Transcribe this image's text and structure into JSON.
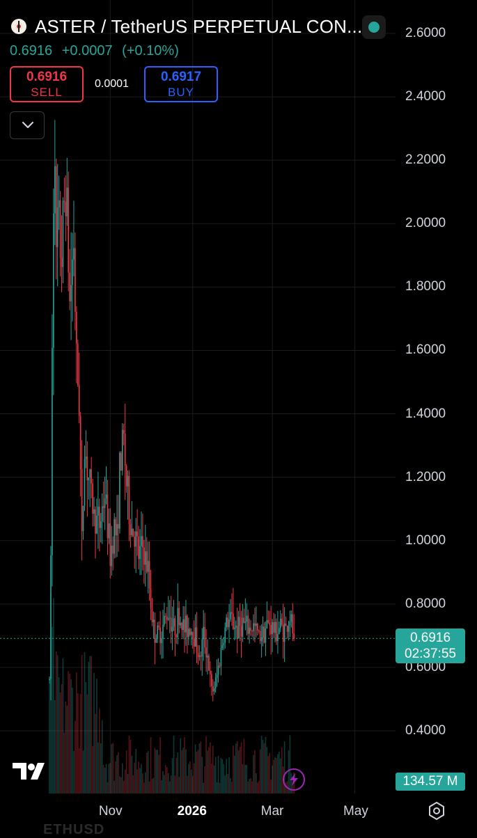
{
  "header": {
    "title": "ASTER / TetherUS PERPETUAL CON...",
    "last_price": "0.6916",
    "change_abs": "+0.0007",
    "change_pct": "(+0.10%)"
  },
  "trade": {
    "sell_price": "0.6916",
    "sell_label": "SELL",
    "buy_price": "0.6917",
    "buy_label": "BUY",
    "spread": "0.0001"
  },
  "price_scale": {
    "current_price": "0.6916",
    "countdown": "02:37:55",
    "volume_label": "134.57 M"
  },
  "icons": {
    "status": "status-dot-icon",
    "collapse": "chevron-down-icon",
    "logo": "tradingview-logo-icon",
    "bolt": "lightning-icon",
    "settings": "gear-icon"
  },
  "colors": {
    "up": "#26a69a",
    "down": "#f23645",
    "buy": "#2962ff",
    "background": "#000000",
    "grid": "#1c1c1c",
    "bolt": "#9c27b0"
  },
  "watermark": "ETHUSD",
  "chart_data": {
    "type": "candlestick",
    "title": "ASTER / TetherUS PERPETUAL CON...",
    "xlabel": "",
    "ylabel": "",
    "ylim": [
      0.3,
      2.65
    ],
    "grid": true,
    "y_ticks": [
      "2.6000",
      "2.4000",
      "2.2000",
      "2.0000",
      "1.8000",
      "1.6000",
      "1.4000",
      "1.2000",
      "1.0000",
      "0.8000",
      "0.6000",
      "0.4000"
    ],
    "x_ticks": [
      "Nov",
      "2026",
      "Mar",
      "May"
    ],
    "date_range": [
      "2025-09-17",
      "2026-03-17"
    ],
    "current_price": 0.6916,
    "ohlc_path": [
      [
        "2025-09-17",
        0.55
      ],
      [
        "2025-09-18",
        0.95
      ],
      [
        "2025-09-19",
        1.6
      ],
      [
        "2025-09-20",
        2.1
      ],
      [
        "2025-09-21",
        2.3
      ],
      [
        "2025-09-22",
        1.85
      ],
      [
        "2025-09-23",
        2.0
      ],
      [
        "2025-09-26",
        1.9
      ],
      [
        "2025-09-29",
        2.15
      ],
      [
        "2025-10-02",
        1.75
      ],
      [
        "2025-10-05",
        1.95
      ],
      [
        "2025-10-07",
        1.55
      ],
      [
        "2025-10-09",
        1.45
      ],
      [
        "2025-10-11",
        0.98
      ],
      [
        "2025-10-13",
        1.3
      ],
      [
        "2025-10-16",
        1.2
      ],
      [
        "2025-10-20",
        1.08
      ],
      [
        "2025-10-24",
        1.05
      ],
      [
        "2025-10-28",
        1.15
      ],
      [
        "2025-11-01",
        0.95
      ],
      [
        "2025-11-04",
        1.05
      ],
      [
        "2025-11-06",
        1.0
      ],
      [
        "2025-11-08",
        1.22
      ],
      [
        "2025-11-11",
        1.32
      ],
      [
        "2025-11-13",
        1.18
      ],
      [
        "2025-11-16",
        1.05
      ],
      [
        "2025-11-19",
        1.02
      ],
      [
        "2025-11-22",
        0.95
      ],
      [
        "2025-11-25",
        0.98
      ],
      [
        "2025-11-29",
        0.9
      ],
      [
        "2025-12-03",
        0.72
      ],
      [
        "2025-12-06",
        0.7
      ],
      [
        "2025-12-10",
        0.73
      ],
      [
        "2025-12-14",
        0.78
      ],
      [
        "2025-12-18",
        0.72
      ],
      [
        "2025-12-22",
        0.76
      ],
      [
        "2025-12-26",
        0.72
      ],
      [
        "2025-12-30",
        0.73
      ],
      [
        "2026-01-03",
        0.7
      ],
      [
        "2026-01-06",
        0.62
      ],
      [
        "2026-01-09",
        0.7
      ],
      [
        "2026-01-12",
        0.64
      ],
      [
        "2026-01-15",
        0.52
      ],
      [
        "2026-01-18",
        0.55
      ],
      [
        "2026-01-20",
        0.6
      ],
      [
        "2026-01-23",
        0.68
      ],
      [
        "2026-01-26",
        0.74
      ],
      [
        "2026-01-30",
        0.75
      ],
      [
        "2026-02-03",
        0.72
      ],
      [
        "2026-02-07",
        0.74
      ],
      [
        "2026-02-11",
        0.72
      ],
      [
        "2026-02-15",
        0.73
      ],
      [
        "2026-02-19",
        0.7
      ],
      [
        "2026-02-23",
        0.72
      ],
      [
        "2026-02-27",
        0.74
      ],
      [
        "2026-03-03",
        0.71
      ],
      [
        "2026-03-07",
        0.73
      ],
      [
        "2026-03-11",
        0.72
      ],
      [
        "2026-03-14",
        0.76
      ],
      [
        "2026-03-17",
        0.6916
      ]
    ],
    "volume_last": "134.57 M"
  }
}
